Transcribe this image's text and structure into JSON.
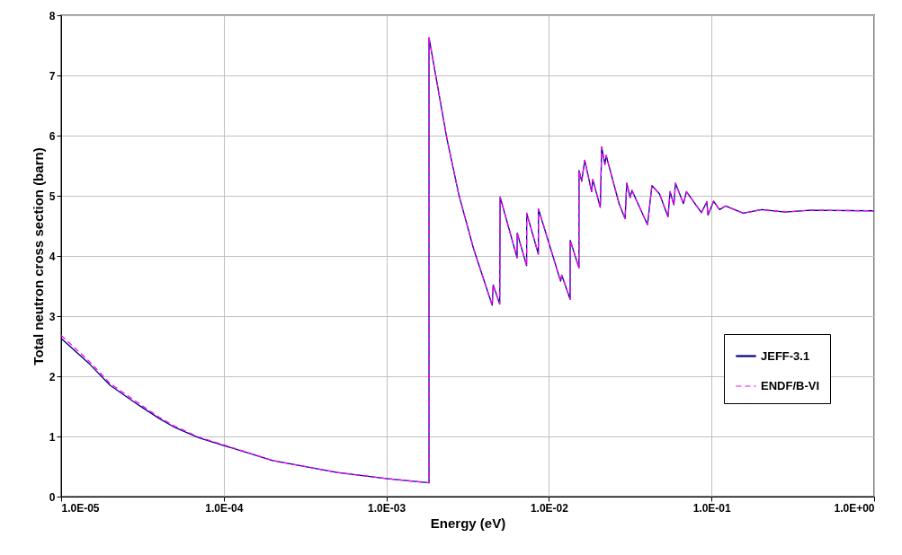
{
  "chart_data": {
    "type": "line",
    "xlabel": "Energy (eV)",
    "ylabel": "Total neutron cross section (barn)",
    "log": "x",
    "xlim": [
      1e-05,
      1
    ],
    "xticks": [
      {
        "value": 1e-05,
        "label": "1.0E-05"
      },
      {
        "value": 0.0001,
        "label": "1.0E-04"
      },
      {
        "value": 0.001,
        "label": "1.0E-03"
      },
      {
        "value": 0.01,
        "label": "1.0E-02"
      },
      {
        "value": 0.1,
        "label": "1.0E-01"
      },
      {
        "value": 1,
        "label": "1.0E+00"
      }
    ],
    "ylim": [
      0,
      8
    ],
    "yticks": [
      0,
      1,
      2,
      3,
      4,
      5,
      6,
      7,
      8
    ],
    "grid": true,
    "legend": "bottom right",
    "marker": "none",
    "x": [
      1e-05,
      1.5e-05,
      2e-05,
      3e-05,
      4e-05,
      5e-05,
      7e-05,
      0.0001,
      0.0002,
      0.0005,
      0.001,
      0.00183,
      0.00183,
      0.00235,
      0.00279,
      0.00344,
      0.00448,
      0.00454,
      0.00498,
      0.00501,
      0.00637,
      0.00638,
      0.00729,
      0.0073,
      0.00861,
      0.00862,
      0.0118,
      0.012,
      0.0135,
      0.01352,
      0.0153,
      0.01532,
      0.0159,
      0.0166,
      0.0183,
      0.0186,
      0.0207,
      0.0211,
      0.0221,
      0.0225,
      0.027,
      0.0294,
      0.0301,
      0.0316,
      0.0324,
      0.0404,
      0.043,
      0.0479,
      0.054,
      0.0556,
      0.0587,
      0.06,
      0.0672,
      0.0701,
      0.0867,
      0.0935,
      0.0951,
      0.103,
      0.112,
      0.122,
      0.157,
      0.203,
      0.284,
      0.4,
      1
    ],
    "series": [
      {
        "name": "JEFF-3.1",
        "color": "#000080",
        "line_style": "solid",
        "values": [
          2.63,
          2.2,
          1.85,
          1.52,
          1.3,
          1.15,
          0.98,
          0.85,
          0.6,
          0.4,
          0.3,
          0.23,
          7.63,
          5.97,
          5.02,
          4.12,
          3.18,
          3.52,
          3.2,
          4.98,
          3.97,
          4.38,
          3.84,
          4.71,
          4.03,
          4.78,
          3.58,
          3.68,
          3.28,
          4.26,
          3.8,
          5.42,
          5.24,
          5.59,
          5.07,
          5.27,
          4.81,
          5.81,
          5.52,
          5.67,
          4.87,
          4.62,
          5.21,
          4.97,
          5.09,
          4.52,
          5.17,
          5.03,
          4.65,
          5.07,
          4.85,
          5.21,
          4.87,
          5.07,
          4.72,
          4.9,
          4.68,
          4.91,
          4.77,
          4.83,
          4.71,
          4.77,
          4.73,
          4.76,
          4.75
        ]
      },
      {
        "name": "ENDF/B-VI",
        "color": "#ff00ff",
        "line_style": "dashed",
        "values": [
          2.68,
          2.24,
          1.88,
          1.55,
          1.32,
          1.17,
          0.99,
          0.86,
          0.6,
          0.4,
          0.3,
          0.23,
          7.63,
          5.97,
          5.02,
          4.12,
          3.18,
          3.52,
          3.2,
          4.98,
          3.97,
          4.38,
          3.84,
          4.71,
          4.03,
          4.78,
          3.58,
          3.68,
          3.28,
          4.26,
          3.8,
          5.42,
          5.24,
          5.59,
          5.07,
          5.27,
          4.81,
          5.81,
          5.52,
          5.67,
          4.87,
          4.62,
          5.21,
          4.97,
          5.09,
          4.52,
          5.17,
          5.03,
          4.65,
          5.07,
          4.85,
          5.21,
          4.87,
          5.07,
          4.72,
          4.9,
          4.68,
          4.91,
          4.77,
          4.83,
          4.71,
          4.77,
          4.73,
          4.76,
          4.75
        ]
      }
    ]
  }
}
